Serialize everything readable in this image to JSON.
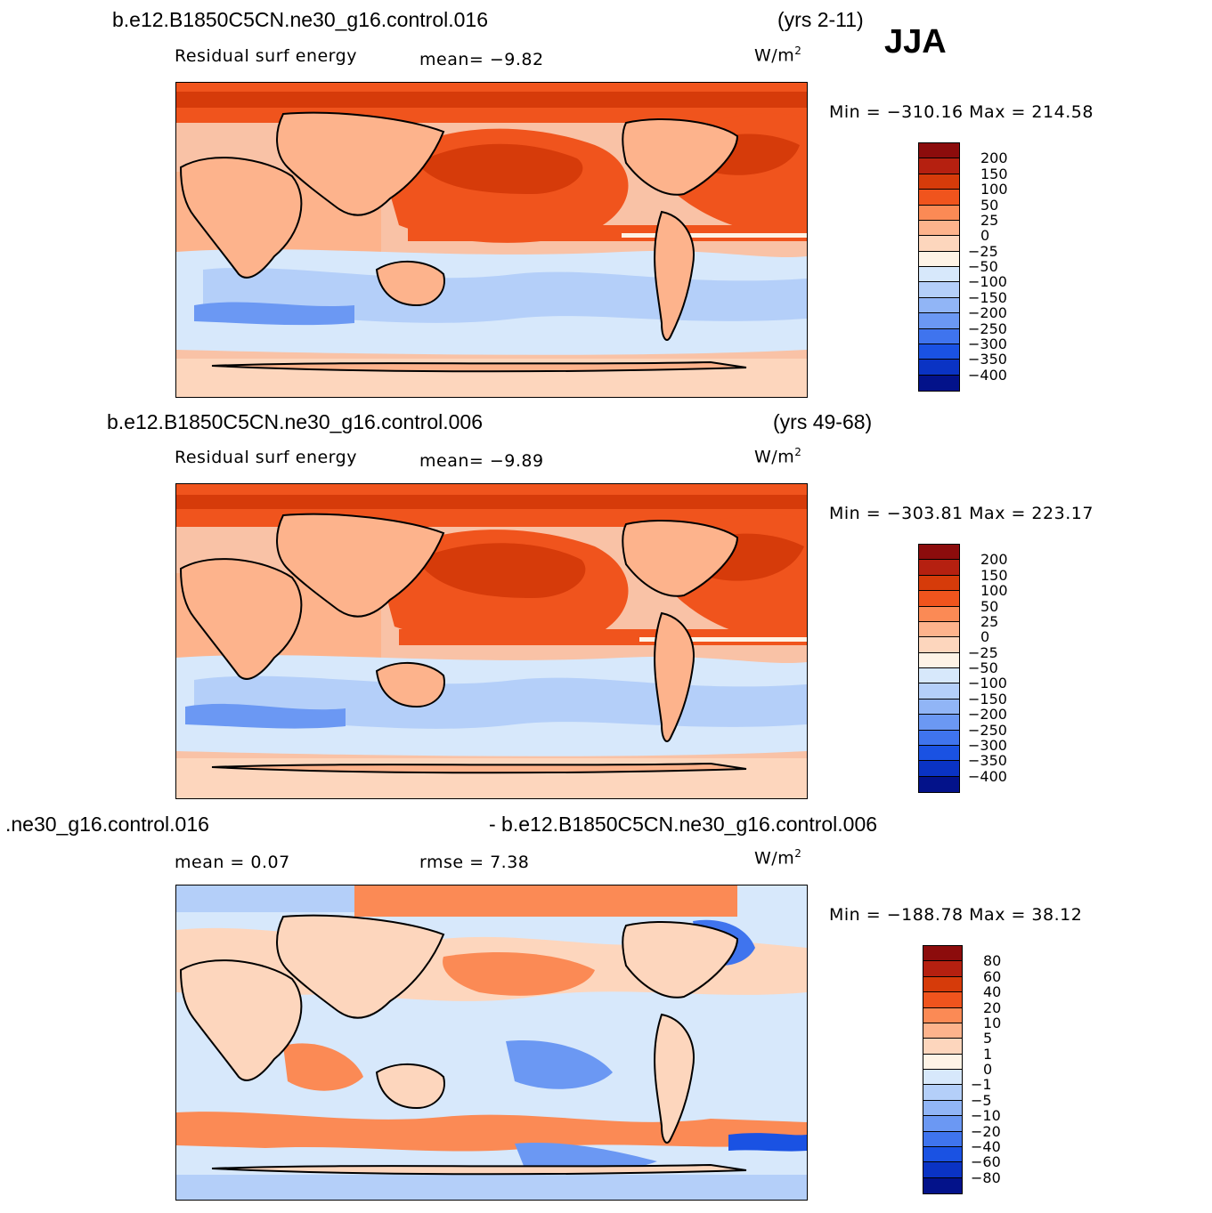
{
  "season": "JJA",
  "panels": [
    {
      "case": "b.e12.B1850C5CN.ne30_g16.control.016",
      "years": "(yrs 2-11)",
      "variable": "Residual surf energy",
      "stat": "mean=   −9.82",
      "units": "W/m",
      "units_sup": "2",
      "minmax": "Min = −310.16  Max =  214.58",
      "colorbar_levels": [
        "200",
        "150",
        "100",
        "50",
        "25",
        "0",
        "−25",
        "−50",
        "−100",
        "−150",
        "−200",
        "−250",
        "−300",
        "−350",
        "−400"
      ],
      "colorbar_colors": [
        "#8c0c0c",
        "#b52010",
        "#d63b0a",
        "#f0541d",
        "#fb8a55",
        "#fdb38c",
        "#fdd6bd",
        "#fef3e6",
        "#d7e8fb",
        "#b4cff9",
        "#91b5f6",
        "#6b98f3",
        "#3f74ee",
        "#1a52e3",
        "#0a33c4",
        "#03128a"
      ],
      "color_order": "top-to-bottom"
    },
    {
      "case": "b.e12.B1850C5CN.ne30_g16.control.006",
      "years": "(yrs 49-68)",
      "variable": "Residual surf energy",
      "stat": "mean=   −9.89",
      "units": "W/m",
      "units_sup": "2",
      "minmax": "Min = −303.81  Max =  223.17",
      "colorbar_levels": [
        "200",
        "150",
        "100",
        "50",
        "25",
        "0",
        "−25",
        "−50",
        "−100",
        "−150",
        "−200",
        "−250",
        "−300",
        "−350",
        "−400"
      ],
      "colorbar_colors": [
        "#8c0c0c",
        "#b52010",
        "#d63b0a",
        "#f0541d",
        "#fb8a55",
        "#fdb38c",
        "#fdd6bd",
        "#fef3e6",
        "#d7e8fb",
        "#b4cff9",
        "#91b5f6",
        "#6b98f3",
        "#3f74ee",
        "#1a52e3",
        "#0a33c4",
        "#03128a"
      ],
      "color_order": "top-to-bottom"
    },
    {
      "case_left": ".ne30_g16.control.016",
      "case_right": "- b.e12.B1850C5CN.ne30_g16.control.006",
      "mean": "mean =    0.07",
      "rmse": "rmse =    7.38",
      "units": "W/m",
      "units_sup": "2",
      "minmax": "Min = −188.78  Max =   38.12",
      "colorbar_levels": [
        "80",
        "60",
        "40",
        "20",
        "10",
        "5",
        "1",
        "0",
        "−1",
        "−5",
        "−10",
        "−20",
        "−40",
        "−60",
        "−80"
      ],
      "colorbar_colors": [
        "#8c0c0c",
        "#b52010",
        "#d63b0a",
        "#f0541d",
        "#fb8a55",
        "#fdb38c",
        "#fdd6bd",
        "#fef3e6",
        "#d7e8fb",
        "#b4cff9",
        "#91b5f6",
        "#6b98f3",
        "#3f74ee",
        "#1a52e3",
        "#0a33c4",
        "#03128a"
      ],
      "color_order": "top-to-bottom"
    }
  ]
}
